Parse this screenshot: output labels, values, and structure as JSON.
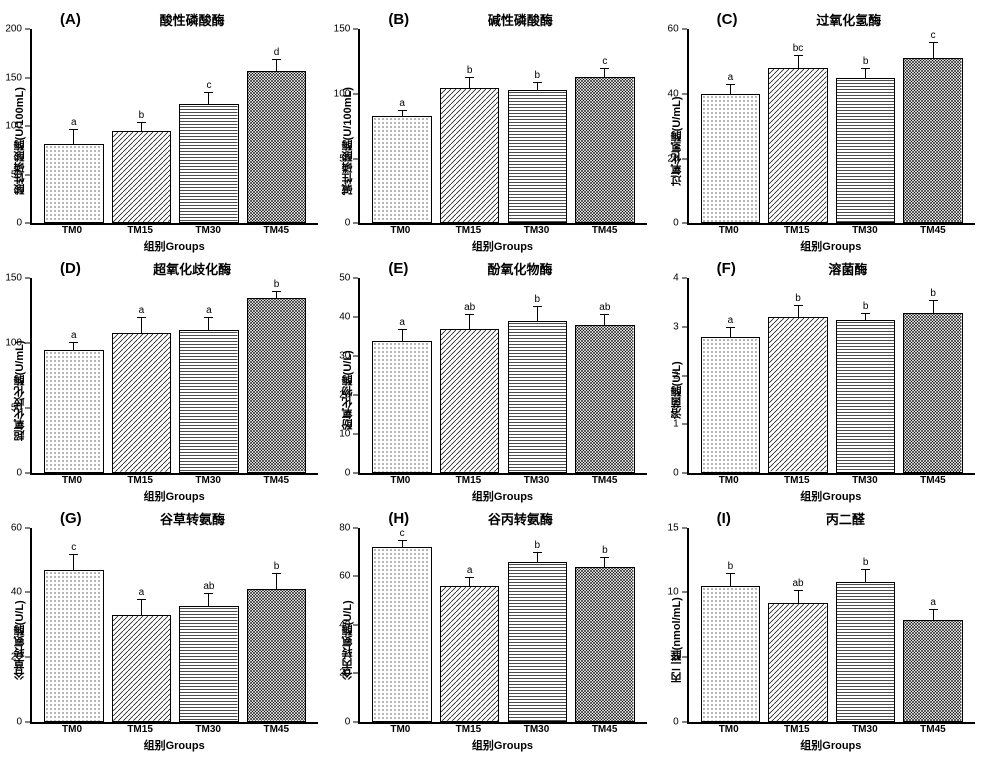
{
  "global": {
    "xlabel": "组别Groups",
    "categories": [
      "TM0",
      "TM15",
      "TM30",
      "TM45"
    ],
    "patterns": [
      "p0",
      "p1",
      "p2",
      "p3"
    ],
    "background_color": "#ffffff",
    "axis_color": "#000000",
    "bar_border_color": "#000000",
    "letter_fontsize": 15,
    "title_fontsize": 13,
    "axis_label_fontsize": 11,
    "tick_fontsize": 10,
    "sig_fontsize": 10
  },
  "panels": [
    {
      "letter": "(A)",
      "title": "酸性磷酸酶",
      "ylabel": "酸性磷酸酶(U/100mL)",
      "ymax": 200,
      "yticks": [
        0,
        50,
        100,
        150,
        200
      ],
      "values": [
        82,
        95,
        123,
        157
      ],
      "errors": [
        15,
        10,
        12,
        12
      ],
      "sig": [
        "a",
        "b",
        "c",
        "d"
      ]
    },
    {
      "letter": "(B)",
      "title": "碱性磷酸酶",
      "ylabel": "碱性磷酸酶(U/100mL)",
      "ymax": 150,
      "yticks": [
        0,
        50,
        100,
        150
      ],
      "values": [
        83,
        105,
        103,
        113
      ],
      "errors": [
        5,
        8,
        6,
        7
      ],
      "sig": [
        "a",
        "b",
        "b",
        "c"
      ]
    },
    {
      "letter": "(C)",
      "title": "过氧化氢酶",
      "ylabel": "过氧化氢酶(U/mL)",
      "ymax": 60,
      "yticks": [
        0,
        20,
        40,
        60
      ],
      "values": [
        40,
        48,
        45,
        51
      ],
      "errors": [
        3,
        4,
        3,
        5
      ],
      "sig": [
        "a",
        "bc",
        "b",
        "c"
      ]
    },
    {
      "letter": "(D)",
      "title": "超氧化歧化酶",
      "ylabel": "超氧化歧化酶(U/mL)",
      "ymax": 150,
      "yticks": [
        0,
        50,
        100,
        150
      ],
      "values": [
        95,
        108,
        110,
        135
      ],
      "errors": [
        6,
        12,
        10,
        6
      ],
      "sig": [
        "a",
        "a",
        "a",
        "b"
      ]
    },
    {
      "letter": "(E)",
      "title": "酚氧化物酶",
      "ylabel": "酚氧化物酶(U/L)",
      "ymax": 50,
      "yticks": [
        0,
        10,
        20,
        30,
        40,
        50
      ],
      "values": [
        34,
        37,
        39,
        38
      ],
      "errors": [
        3,
        4,
        4,
        3
      ],
      "sig": [
        "a",
        "ab",
        "b",
        "ab"
      ]
    },
    {
      "letter": "(F)",
      "title": "溶菌酶",
      "ylabel": "溶菌酶(U/L)",
      "ymax": 4,
      "yticks": [
        0,
        1,
        2,
        3,
        4
      ],
      "values": [
        2.8,
        3.2,
        3.15,
        3.3
      ],
      "errors": [
        0.2,
        0.25,
        0.15,
        0.25
      ],
      "sig": [
        "a",
        "b",
        "b",
        "b"
      ]
    },
    {
      "letter": "(G)",
      "title": "谷草转氨酶",
      "ylabel": "谷草转氨酶(U/L)",
      "ymax": 60,
      "yticks": [
        0,
        20,
        40,
        60
      ],
      "values": [
        47,
        33,
        36,
        41
      ],
      "errors": [
        5,
        5,
        4,
        5
      ],
      "sig": [
        "c",
        "a",
        "ab",
        "b"
      ]
    },
    {
      "letter": "(H)",
      "title": "谷丙转氨酶",
      "ylabel": "谷丙转氨酶(U/L)",
      "ymax": 80,
      "yticks": [
        0,
        20,
        40,
        60,
        80
      ],
      "values": [
        73,
        56,
        66,
        64
      ],
      "errors": [
        3,
        4,
        4,
        4
      ],
      "sig": [
        "c",
        "a",
        "b",
        "b"
      ]
    },
    {
      "letter": "(I)",
      "title": "丙二醛",
      "ylabel": "丙二醛(nmol/mL)",
      "ymax": 15,
      "yticks": [
        0,
        5,
        10,
        15
      ],
      "values": [
        10.5,
        9.2,
        10.8,
        7.9
      ],
      "errors": [
        1.0,
        1.0,
        1.0,
        0.8
      ],
      "sig": [
        "b",
        "ab",
        "b",
        "a"
      ]
    }
  ]
}
